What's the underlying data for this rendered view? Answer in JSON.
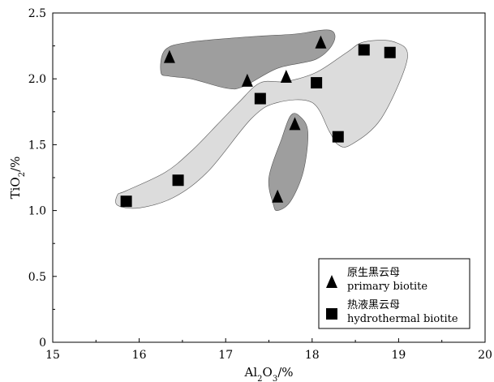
{
  "chart_data": {
    "type": "scatter",
    "xlabel_parts": [
      "Al",
      "2",
      "O",
      "3",
      "/%"
    ],
    "ylabel_parts": [
      "TiO",
      "2",
      "/%"
    ],
    "xlim": [
      15,
      20
    ],
    "ylim": [
      0,
      2.5
    ],
    "x_ticks": [
      "15",
      "16",
      "17",
      "18",
      "19",
      "20"
    ],
    "y_ticks": [
      "0",
      "0.5",
      "1.0",
      "1.5",
      "2.0",
      "2.5"
    ],
    "grid": false,
    "legend_position": "bottom-right",
    "series": [
      {
        "name": "原生黑云母",
        "name_en": "primary biotite",
        "marker": "triangle",
        "color": "#000000",
        "points": [
          [
            16.35,
            2.17
          ],
          [
            17.25,
            1.99
          ],
          [
            17.7,
            2.02
          ],
          [
            18.1,
            2.28
          ],
          [
            17.8,
            1.66
          ],
          [
            17.6,
            1.11
          ]
        ]
      },
      {
        "name": "热液黑云母",
        "name_en": "hydrothermal biotite",
        "marker": "square",
        "color": "#000000",
        "points": [
          [
            15.85,
            1.07
          ],
          [
            16.45,
            1.23
          ],
          [
            17.4,
            1.85
          ],
          [
            18.05,
            1.97
          ],
          [
            18.3,
            1.56
          ],
          [
            18.6,
            2.22
          ],
          [
            18.9,
            2.2
          ]
        ]
      }
    ],
    "regions": [
      {
        "group": "primary biotite",
        "color": "#9e9e9e",
        "outline": [
          [
            16.25,
            2.05
          ],
          [
            16.3,
            2.22
          ],
          [
            16.6,
            2.28
          ],
          [
            17.3,
            2.32
          ],
          [
            17.8,
            2.34
          ],
          [
            18.2,
            2.37
          ],
          [
            18.25,
            2.28
          ],
          [
            18.05,
            2.15
          ],
          [
            17.6,
            2.08
          ],
          [
            17.2,
            1.94
          ],
          [
            17.0,
            1.93
          ],
          [
            16.6,
            2.0
          ],
          [
            16.35,
            2.02
          ]
        ]
      },
      {
        "group": "primary biotite",
        "color": "#9e9e9e",
        "outline": [
          [
            17.55,
            1.05
          ],
          [
            17.5,
            1.25
          ],
          [
            17.65,
            1.55
          ],
          [
            17.75,
            1.72
          ],
          [
            17.85,
            1.72
          ],
          [
            17.95,
            1.6
          ],
          [
            17.9,
            1.3
          ],
          [
            17.75,
            1.07
          ],
          [
            17.6,
            1.0
          ]
        ]
      },
      {
        "group": "hydrothermal biotite",
        "color": "#dcdcdc",
        "outline": [
          [
            15.75,
            1.04
          ],
          [
            15.75,
            1.12
          ],
          [
            15.85,
            1.15
          ],
          [
            16.3,
            1.29
          ],
          [
            16.6,
            1.45
          ],
          [
            16.9,
            1.65
          ],
          [
            17.15,
            1.82
          ],
          [
            17.4,
            1.97
          ],
          [
            17.7,
            1.98
          ],
          [
            18.05,
            2.05
          ],
          [
            18.4,
            2.2
          ],
          [
            18.6,
            2.28
          ],
          [
            18.95,
            2.28
          ],
          [
            19.1,
            2.15
          ],
          [
            18.8,
            1.7
          ],
          [
            18.45,
            1.5
          ],
          [
            18.3,
            1.5
          ],
          [
            18.2,
            1.6
          ],
          [
            18.0,
            1.82
          ],
          [
            17.6,
            1.82
          ],
          [
            17.3,
            1.7
          ],
          [
            16.8,
            1.3
          ],
          [
            16.4,
            1.1
          ],
          [
            16.0,
            1.02
          ]
        ]
      }
    ]
  }
}
